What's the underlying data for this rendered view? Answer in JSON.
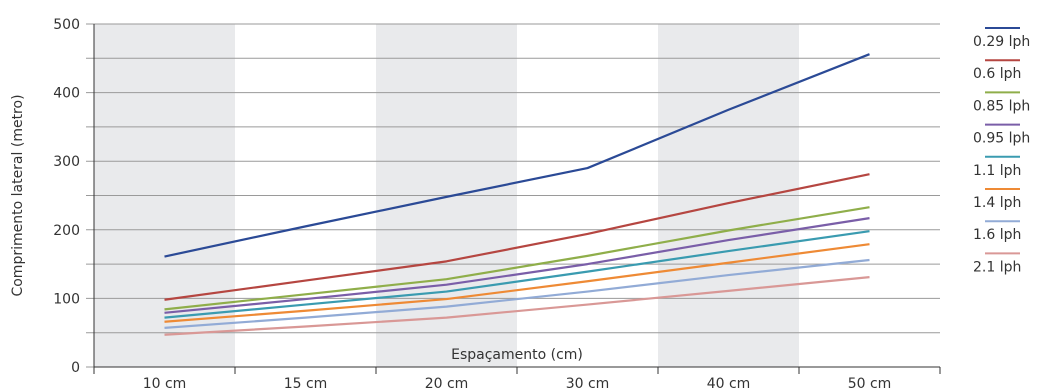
{
  "chart_data": {
    "type": "line",
    "categories": [
      "10 cm",
      "15 cm",
      "20 cm",
      "30 cm",
      "40 cm",
      "50 cm"
    ],
    "xlabel": "Espaçamento (cm)",
    "ylabel": "Comprimento lateral (metro)",
    "ylim": [
      0,
      500
    ],
    "yticks": [
      0,
      100,
      200,
      300,
      400,
      500
    ],
    "grid": true,
    "legend": "right",
    "series": [
      {
        "name": "0.29 lph",
        "color": "#2b4a96",
        "values": [
          161,
          205,
          248,
          290,
          375,
          456
        ]
      },
      {
        "name": "0.6 lph",
        "color": "#b54641",
        "values": [
          98,
          126,
          154,
          194,
          239,
          281
        ]
      },
      {
        "name": "0.85 lph",
        "color": "#8fae4a",
        "values": [
          84,
          106,
          128,
          162,
          199,
          233
        ]
      },
      {
        "name": "0.95 lph",
        "color": "#7a5ea8",
        "values": [
          79,
          99,
          120,
          150,
          185,
          217
        ]
      },
      {
        "name": "1.1 lph",
        "color": "#3a9bb0",
        "values": [
          72,
          91,
          110,
          139,
          169,
          198
        ]
      },
      {
        "name": "1.4 lph",
        "color": "#ee8a35",
        "values": [
          66,
          82,
          99,
          125,
          152,
          179
        ]
      },
      {
        "name": "1.6 lph",
        "color": "#92abd6",
        "values": [
          57,
          72,
          88,
          110,
          134,
          156
        ]
      },
      {
        "name": "2.1 lph",
        "color": "#d99896",
        "values": [
          47,
          59,
          72,
          91,
          111,
          131
        ]
      }
    ]
  },
  "colors": {
    "band": "#e9eaec",
    "grid": "#9a9a9a",
    "axis": "#333333"
  }
}
